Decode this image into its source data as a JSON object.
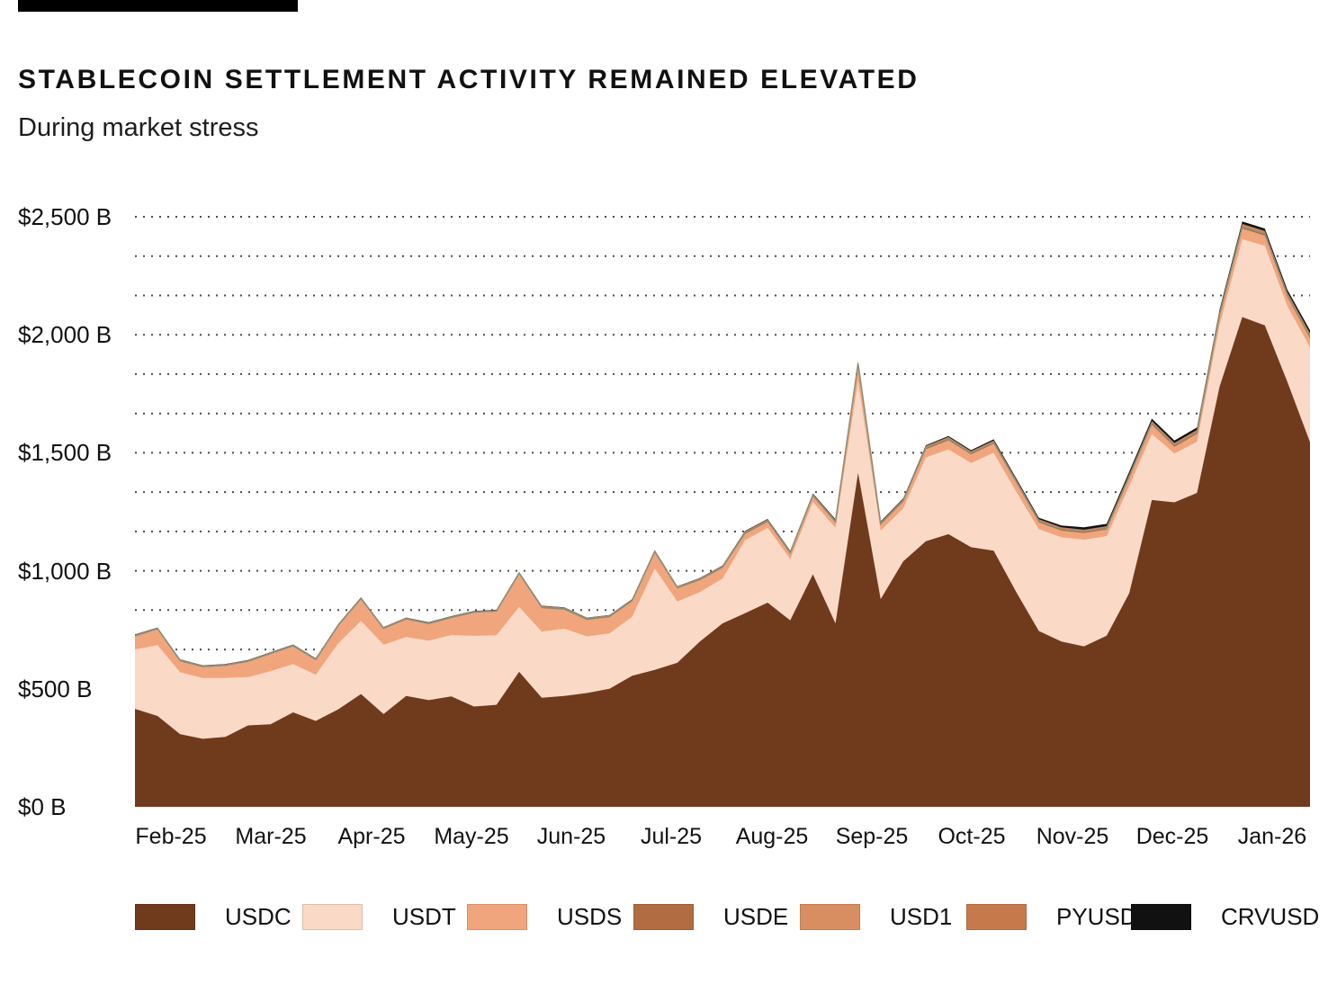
{
  "page": {
    "title": "STABLECOIN SETTLEMENT ACTIVITY REMAINED ELEVATED",
    "subtitle": "During market stress"
  },
  "chart_data": {
    "type": "area",
    "stacked": true,
    "title": "STABLECOIN SETTLEMENT ACTIVITY REMAINED ELEVATED",
    "subtitle": "During market stress",
    "value_unit": "$ billions",
    "x_points": "weekly values, Feb-2025 through Jan-2026 (53 points)",
    "categories": [
      "Feb-25",
      "Mar-25",
      "Apr-25",
      "May-25",
      "Jun-25",
      "Jul-25",
      "Aug-25",
      "Sep-25",
      "Oct-25",
      "Nov-25",
      "Dec-25",
      "Jan-26"
    ],
    "y_tick_labels": [
      "$2,500 B",
      "$2,000 B",
      "$1,500 B",
      "$1,000 B",
      "$500 B",
      "$0 B"
    ],
    "ylim": [
      0,
      2500
    ],
    "grid": {
      "style": "dotted",
      "interval_b": 166.67,
      "color": "#4b4b4b"
    },
    "legend_position": "bottom",
    "top_edge_accent_color": "#8F8E77",
    "series": [
      {
        "name": "USDC",
        "color": "#703A1D",
        "values": [
          415,
          385,
          308,
          288,
          296,
          345,
          350,
          400,
          364,
          413,
          478,
          393,
          470,
          452,
          468,
          425,
          432,
          572,
          462,
          470,
          482,
          500,
          555,
          580,
          610,
          700,
          777,
          820,
          865,
          790,
          985,
          777,
          1415,
          880,
          1040,
          1125,
          1155,
          1100,
          1085,
          910,
          745,
          700,
          680,
          725,
          905,
          1300,
          1290,
          1330,
          1780,
          2075,
          2040,
          1800,
          1545
        ]
      },
      {
        "name": "USDT",
        "color": "#FBD9C7",
        "values": [
          252,
          300,
          262,
          258,
          250,
          205,
          225,
          205,
          196,
          280,
          310,
          294,
          250,
          252,
          260,
          300,
          295,
          275,
          280,
          285,
          240,
          235,
          250,
          430,
          260,
          210,
          190,
          310,
          317,
          260,
          307,
          405,
          390,
          290,
          225,
          355,
          360,
          357,
          415,
          425,
          432,
          442,
          452,
          422,
          455,
          280,
          207,
          217,
          262,
          330,
          337,
          322,
          402
        ]
      },
      {
        "name": "USDS",
        "color": "#F0A57C",
        "values": [
          55,
          67,
          47,
          46,
          51,
          64,
          72,
          75,
          62,
          74,
          92,
          67,
          74,
          70,
          72,
          97,
          100,
          140,
          100,
          80,
          70,
          68,
          65,
          68,
          55,
          50,
          45,
          26,
          25,
          22,
          23,
          22,
          68,
          25,
          28,
          35,
          38,
          36,
          38,
          38,
          28,
          28,
          28,
          28,
          33,
          38,
          28,
          33,
          38,
          45,
          43,
          38,
          38
        ]
      },
      {
        "name": "USDE",
        "color": "#B26C41",
        "values": [
          3,
          3,
          3,
          3,
          3,
          3,
          3,
          3,
          3,
          3,
          3,
          3,
          3,
          3,
          3,
          3,
          3,
          3,
          4,
          4,
          4,
          4,
          4,
          4,
          4,
          4,
          4,
          5,
          5,
          5,
          5,
          5,
          5,
          5,
          5,
          6,
          6,
          6,
          6,
          6,
          6,
          6,
          6,
          6,
          7,
          7,
          7,
          7,
          7,
          8,
          8,
          8,
          9
        ]
      },
      {
        "name": "USD1",
        "color": "#D98E62",
        "values": [
          2,
          2,
          2,
          2,
          2,
          2,
          2,
          2,
          2,
          2,
          2,
          2,
          2,
          2,
          2,
          2,
          2,
          2,
          3,
          3,
          3,
          3,
          3,
          3,
          3,
          3,
          3,
          4,
          4,
          4,
          4,
          4,
          4,
          4,
          4,
          5,
          5,
          5,
          5,
          5,
          5,
          5,
          5,
          5,
          6,
          6,
          6,
          6,
          6,
          7,
          7,
          7,
          8
        ]
      },
      {
        "name": "PYUSD",
        "color": "#C67A4C",
        "values": [
          2,
          2,
          2,
          2,
          2,
          2,
          2,
          2,
          2,
          2,
          2,
          2,
          2,
          2,
          2,
          2,
          2,
          2,
          2,
          2,
          2,
          2,
          2,
          2,
          2,
          2,
          2,
          2,
          2,
          2,
          2,
          2,
          2,
          2,
          2,
          3,
          3,
          3,
          3,
          3,
          3,
          3,
          3,
          3,
          4,
          4,
          4,
          4,
          4,
          5,
          5,
          5,
          5
        ]
      },
      {
        "name": "CRVUSD",
        "color": "#111111",
        "values": [
          1,
          1,
          1,
          1,
          1,
          1,
          1,
          1,
          1,
          1,
          1,
          1,
          1,
          1,
          1,
          1,
          1,
          1,
          1,
          1,
          1,
          1,
          1,
          1,
          1,
          1,
          1,
          2,
          2,
          2,
          2,
          3,
          3,
          3,
          3,
          3,
          4,
          4,
          5,
          5,
          6,
          8,
          10,
          10,
          10,
          10,
          10,
          10,
          10,
          10,
          10,
          10,
          12
        ]
      }
    ]
  }
}
